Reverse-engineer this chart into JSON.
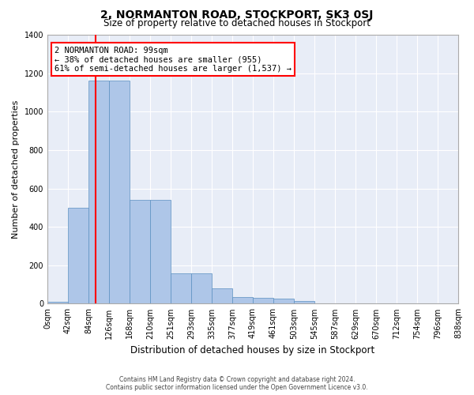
{
  "title": "2, NORMANTON ROAD, STOCKPORT, SK3 0SJ",
  "subtitle": "Size of property relative to detached houses in Stockport",
  "xlabel": "Distribution of detached houses by size in Stockport",
  "ylabel": "Number of detached properties",
  "bin_labels": [
    "0sqm",
    "42sqm",
    "84sqm",
    "126sqm",
    "168sqm",
    "210sqm",
    "251sqm",
    "293sqm",
    "335sqm",
    "377sqm",
    "419sqm",
    "461sqm",
    "503sqm",
    "545sqm",
    "587sqm",
    "629sqm",
    "670sqm",
    "712sqm",
    "754sqm",
    "796sqm",
    "838sqm"
  ],
  "bar_heights": [
    10,
    500,
    1160,
    1160,
    540,
    540,
    160,
    160,
    80,
    35,
    30,
    25,
    15,
    0,
    0,
    0,
    0,
    0,
    0,
    0
  ],
  "property_line_bin": 2.36,
  "annotation_text": "2 NORMANTON ROAD: 99sqm\n← 38% of detached houses are smaller (955)\n61% of semi-detached houses are larger (1,537) →",
  "bar_color": "#aec6e8",
  "bar_edge_color": "#5a8fc0",
  "line_color": "red",
  "bg_color": "#e8edf7",
  "grid_color": "white",
  "footer_text": "Contains HM Land Registry data © Crown copyright and database right 2024.\nContains public sector information licensed under the Open Government Licence v3.0.",
  "ylim": [
    0,
    1400
  ],
  "yticks": [
    0,
    200,
    400,
    600,
    800,
    1000,
    1200,
    1400
  ]
}
